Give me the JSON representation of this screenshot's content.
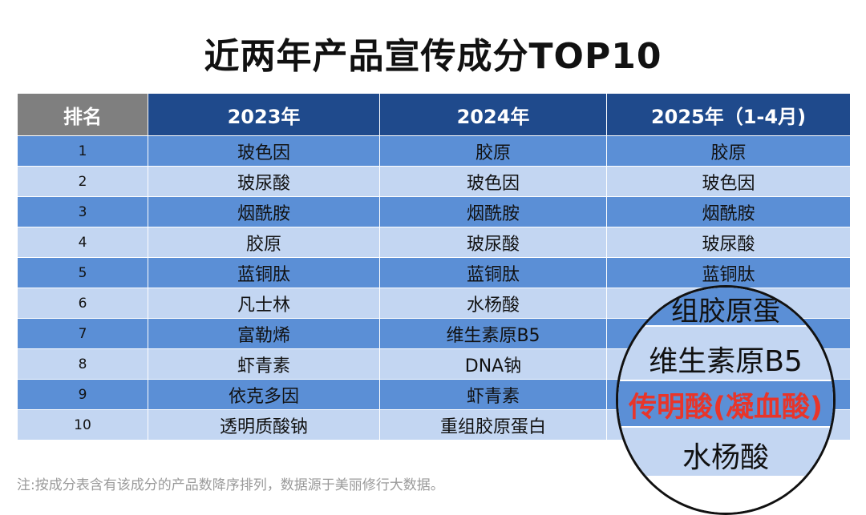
{
  "title": "近两年产品宣传成分TOP10",
  "table": {
    "headers": [
      "排名",
      "2023年",
      "2024年",
      "2025年（1-4月)"
    ],
    "rows": [
      [
        "1",
        "玻色因",
        "胶原",
        "胶原"
      ],
      [
        "2",
        "玻尿酸",
        "玻色因",
        "玻色因"
      ],
      [
        "3",
        "烟酰胺",
        "烟酰胺",
        "烟酰胺"
      ],
      [
        "4",
        "胶原",
        "玻尿酸",
        "玻尿酸"
      ],
      [
        "5",
        "蓝铜肽",
        "蓝铜肽",
        "蓝铜肽"
      ],
      [
        "6",
        "凡士林",
        "水杨酸",
        ""
      ],
      [
        "7",
        "富勒烯",
        "维生素原B5",
        ""
      ],
      [
        "8",
        "虾青素",
        "DNA钠",
        ""
      ],
      [
        "9",
        "依克多因",
        "虾青素",
        ""
      ],
      [
        "10",
        "透明质酸钠",
        "重组胶原蛋白",
        ""
      ]
    ]
  },
  "magnifier": {
    "items": [
      "组胶原蛋",
      "维生素原B5",
      "传明酸(凝血酸)",
      "水杨酸"
    ],
    "highlight_color": "#e8352a"
  },
  "note": "注:按成分表含有该成分的产品数降序排列，数据源于美丽修行大数据。",
  "colors": {
    "header_blue": "#1f4a8c",
    "header_gray": "#7f7f7f",
    "row_dark": "#5b8fd6",
    "row_light": "#c3d6f2"
  }
}
